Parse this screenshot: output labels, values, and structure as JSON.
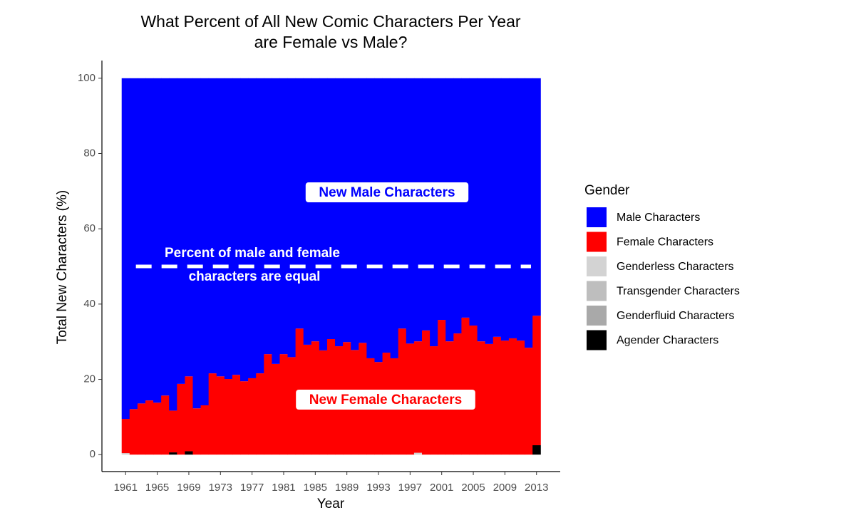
{
  "chart_data": {
    "type": "stacked_bar",
    "title": [
      "What Percent of All New Comic Characters Per Year",
      "are Female vs Male?"
    ],
    "xlabel": "Year",
    "ylabel": "Total New Characters (%)",
    "x": [
      1961,
      1962,
      1963,
      1964,
      1965,
      1966,
      1967,
      1968,
      1969,
      1970,
      1971,
      1972,
      1973,
      1974,
      1975,
      1976,
      1977,
      1978,
      1979,
      1980,
      1981,
      1982,
      1983,
      1984,
      1985,
      1986,
      1987,
      1988,
      1989,
      1990,
      1991,
      1992,
      1993,
      1994,
      1995,
      1996,
      1997,
      1998,
      1999,
      2000,
      2001,
      2002,
      2003,
      2004,
      2005,
      2006,
      2007,
      2008,
      2009,
      2010,
      2011,
      2012,
      2013
    ],
    "series": [
      {
        "name": "Male Characters",
        "color": "#0000ff",
        "values": [
          90.5,
          87.9,
          86.4,
          85.6,
          86.2,
          84.3,
          88.3,
          81.2,
          79.2,
          87.7,
          86.9,
          78.4,
          79.2,
          79.9,
          78.8,
          80.5,
          79.7,
          78.4,
          73.3,
          75.9,
          73.3,
          74.1,
          66.5,
          70.8,
          69.9,
          72.3,
          69.3,
          71.2,
          70.1,
          72.2,
          70.3,
          74.4,
          75.4,
          72.9,
          74.4,
          66.5,
          70.5,
          69.9,
          67.0,
          71.2,
          64.2,
          69.9,
          67.8,
          63.6,
          65.7,
          69.9,
          70.6,
          68.7,
          69.7,
          69.1,
          69.7,
          71.6,
          63.1
        ]
      },
      {
        "name": "Female Characters",
        "color": "#ff0000",
        "values": [
          9.1,
          12.1,
          13.6,
          14.4,
          13.8,
          15.7,
          11.1,
          18.8,
          19.9,
          12.3,
          13.1,
          21.6,
          20.8,
          20.1,
          21.2,
          19.5,
          20.3,
          21.6,
          26.7,
          24.1,
          26.7,
          25.9,
          33.5,
          29.2,
          30.1,
          27.7,
          30.7,
          28.8,
          29.9,
          27.8,
          29.7,
          25.6,
          24.6,
          27.1,
          25.6,
          33.5,
          29.5,
          29.6,
          33.0,
          28.8,
          35.8,
          30.1,
          32.2,
          36.4,
          34.3,
          30.1,
          29.4,
          31.3,
          30.3,
          30.9,
          30.3,
          28.4,
          34.4
        ]
      },
      {
        "name": "Genderless Characters",
        "color": "#d3d3d3",
        "values": [
          0.4,
          0,
          0,
          0,
          0,
          0,
          0,
          0,
          0,
          0,
          0,
          0,
          0,
          0,
          0,
          0,
          0,
          0,
          0,
          0,
          0,
          0,
          0,
          0,
          0,
          0,
          0,
          0,
          0,
          0,
          0,
          0,
          0,
          0,
          0,
          0,
          0,
          0.5,
          0,
          0,
          0,
          0,
          0,
          0,
          0,
          0,
          0,
          0,
          0,
          0,
          0,
          0,
          0
        ]
      },
      {
        "name": "Transgender Characters",
        "color": "#bebebe",
        "values": [
          0,
          0,
          0,
          0,
          0,
          0,
          0,
          0,
          0,
          0,
          0,
          0,
          0,
          0,
          0,
          0,
          0,
          0,
          0,
          0,
          0,
          0,
          0,
          0,
          0,
          0,
          0,
          0,
          0,
          0,
          0,
          0,
          0,
          0,
          0,
          0,
          0,
          0,
          0,
          0,
          0,
          0,
          0,
          0,
          0,
          0,
          0,
          0,
          0,
          0,
          0,
          0,
          0
        ]
      },
      {
        "name": "Genderfluid Characters",
        "color": "#a9a9a9",
        "values": [
          0,
          0,
          0,
          0,
          0,
          0,
          0,
          0,
          0,
          0,
          0,
          0,
          0,
          0,
          0,
          0,
          0,
          0,
          0,
          0,
          0,
          0,
          0,
          0,
          0,
          0,
          0,
          0,
          0,
          0,
          0,
          0,
          0,
          0,
          0,
          0,
          0,
          0,
          0,
          0,
          0,
          0,
          0,
          0,
          0,
          0,
          0,
          0,
          0,
          0,
          0,
          0,
          0
        ]
      },
      {
        "name": "Agender Characters",
        "color": "#000000",
        "values": [
          0,
          0,
          0,
          0,
          0,
          0,
          0.6,
          0,
          0.9,
          0,
          0,
          0,
          0,
          0,
          0,
          0,
          0,
          0,
          0,
          0,
          0,
          0,
          0,
          0,
          0,
          0,
          0,
          0,
          0,
          0,
          0,
          0,
          0,
          0,
          0,
          0,
          0,
          0,
          0,
          0,
          0,
          0,
          0,
          0,
          0,
          0,
          0,
          0,
          0,
          0,
          0,
          0,
          2.5
        ]
      }
    ],
    "xlim": [
      1958,
      2016
    ],
    "xticks": [
      1961,
      1965,
      1969,
      1973,
      1977,
      1981,
      1985,
      1989,
      1993,
      1997,
      2001,
      2005,
      2009,
      2013
    ],
    "ylim": [
      -4.5,
      104.7
    ],
    "yticks": [
      0,
      20,
      40,
      60,
      80,
      100
    ],
    "hline": {
      "value": 50,
      "color": "#ffffff"
    },
    "annotations": [
      {
        "text": "New Male Characters",
        "color": "#0000ff",
        "box": true
      },
      {
        "text": "New Female Characters",
        "color": "#ff0000",
        "box": true
      },
      {
        "text": "Percent of male and female",
        "color": "#ffffff",
        "box": false
      },
      {
        "text": "characters are equal",
        "color": "#ffffff",
        "box": false
      }
    ],
    "legend": {
      "title": "Gender",
      "position": "right"
    }
  }
}
